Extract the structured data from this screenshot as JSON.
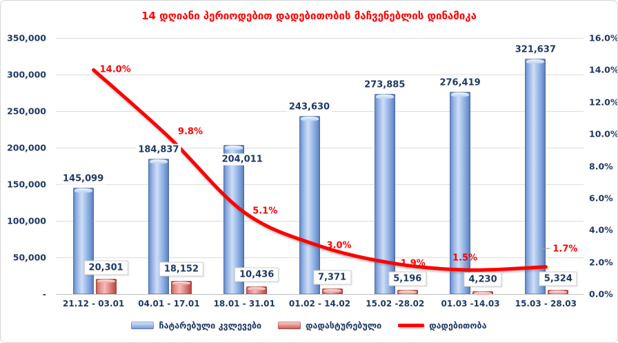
{
  "title": {
    "text": "14 დღიანი პერიოდებით დადებითობის მაჩვენებლის დინამიკა",
    "color": "#ff0000"
  },
  "colors": {
    "bar_tests": "#9dbde9",
    "bar_confirmed": "#e38b87",
    "line_positivity": "#fe0000",
    "value_label": "#1f3864",
    "axis_label": "#1f3864",
    "line_label": "#ff0000"
  },
  "chart_data": {
    "type": "combo-bar-line",
    "title": "14 დღიანი პერიოდებით დადებითობის მაჩვენებლის დინამიკა",
    "categories": [
      "21.12 - 03.01",
      "04.01 - 17.01",
      "18.01 - 31.01",
      "01.02 - 14.02",
      "15.02 -28.02",
      "01.03 -14.03",
      "15.03 - 28.03"
    ],
    "series": [
      {
        "name": "ჩატარებული კვლევები",
        "type": "bar",
        "axis": "left",
        "values": [
          145099,
          184837,
          204011,
          243630,
          273885,
          276419,
          321637
        ],
        "labels": [
          "145,099",
          "184,837",
          "204,011",
          "243,630",
          "273,885",
          "276,419",
          "321,637"
        ]
      },
      {
        "name": "დადასტურებული",
        "type": "bar",
        "axis": "left",
        "values": [
          20301,
          18152,
          10436,
          7371,
          5196,
          4230,
          5324
        ],
        "labels": [
          "20,301",
          "18,152",
          "10,436",
          "7,371",
          "5,196",
          "4,230",
          "5,324"
        ]
      },
      {
        "name": "დადებითობა",
        "type": "line",
        "axis": "right",
        "values": [
          14.0,
          9.8,
          5.1,
          3.0,
          1.9,
          1.5,
          1.7
        ],
        "labels": [
          "14.0%",
          "9.8%",
          "5.1%",
          "3.0%",
          "1.9%",
          "1.5%",
          "1.7%"
        ]
      }
    ],
    "left_axis": {
      "min": 0,
      "max": 350000,
      "step": 50000,
      "tick_labels": [
        "350,000",
        "300,000",
        "250,000",
        "200,000",
        "150,000",
        "100,000",
        "50,000",
        "-"
      ]
    },
    "right_axis": {
      "min": 0,
      "max": 16,
      "step": 2,
      "tick_labels": [
        "16.0%",
        "14.0%",
        "12.0%",
        "10.0%",
        "8.0%",
        "6.0%",
        "4.0%",
        "2.0%",
        "0.0%"
      ]
    },
    "grid": true,
    "legend_position": "bottom"
  }
}
